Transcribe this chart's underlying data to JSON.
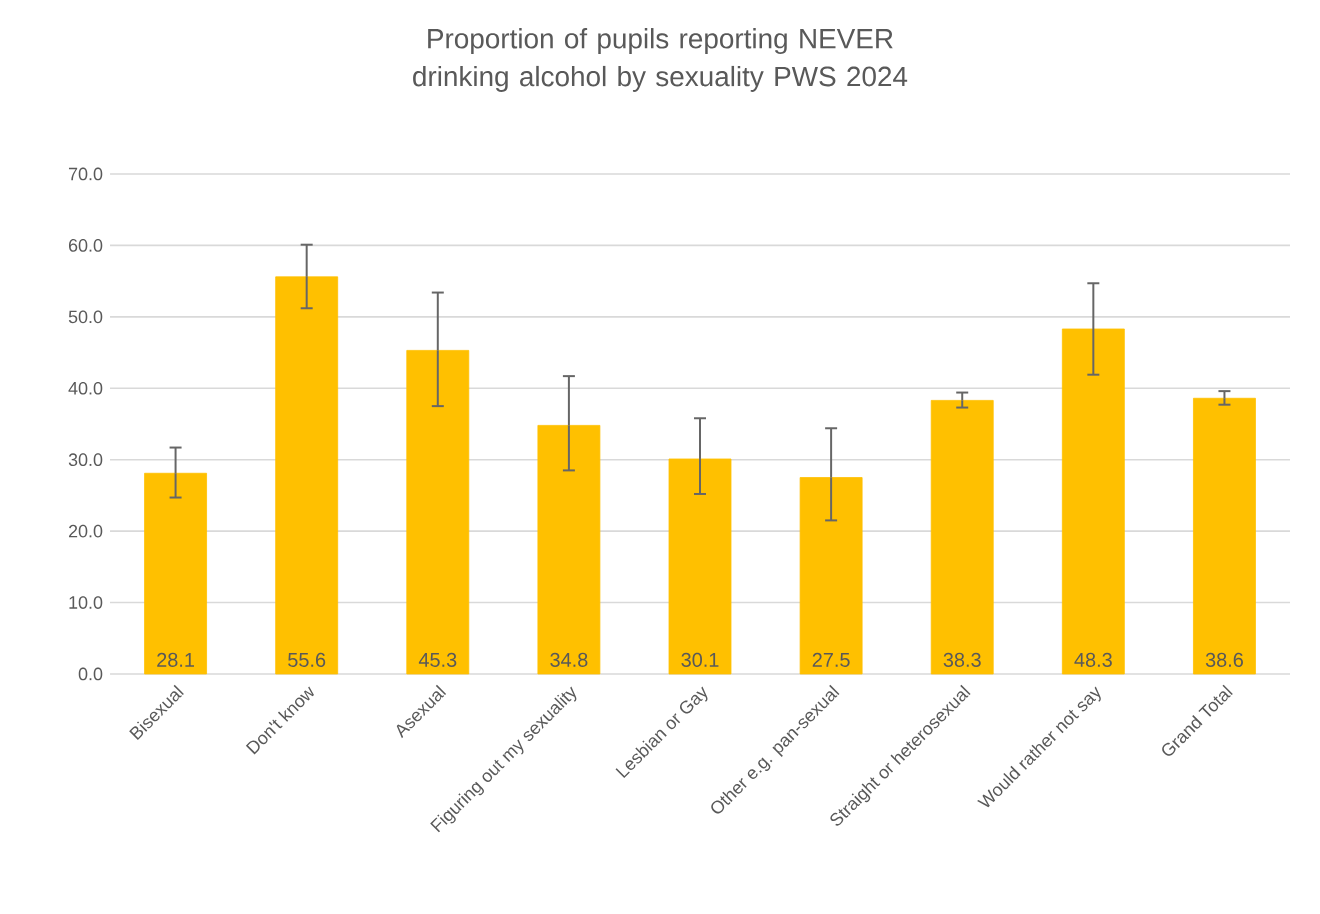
{
  "chart_data": {
    "type": "bar",
    "title": "Proportion of pupils reporting NEVER drinking alcohol by sexuality PWS 2024",
    "categories": [
      "Bisexual",
      "Don't know",
      "Asexual",
      "Figuring out my sexuality",
      "Lesbian or Gay",
      "Other e.g. pan-sexual",
      "Straight or heterosexual",
      "Would rather not say",
      "Grand Total"
    ],
    "values": [
      28.1,
      55.6,
      45.3,
      34.8,
      30.1,
      27.5,
      38.3,
      48.3,
      38.6
    ],
    "errors": [
      [
        24.7,
        31.7
      ],
      [
        51.2,
        60.1
      ],
      [
        37.5,
        53.4
      ],
      [
        28.5,
        41.7
      ],
      [
        25.2,
        35.8
      ],
      [
        21.5,
        34.4
      ],
      [
        37.3,
        39.4
      ],
      [
        41.9,
        54.7
      ],
      [
        37.7,
        39.6
      ]
    ],
    "color": "#ffc000",
    "ylim": [
      0,
      70
    ],
    "yticks": [
      {
        "value": 0,
        "label": "0.0"
      },
      {
        "value": 10,
        "label": "10.0"
      },
      {
        "value": 20,
        "label": "20.0"
      },
      {
        "value": 30,
        "label": "30.0"
      },
      {
        "value": 40,
        "label": "40.0"
      },
      {
        "value": 50,
        "label": "50.0"
      },
      {
        "value": 60,
        "label": "60.0"
      },
      {
        "value": 70,
        "label": "70.0"
      }
    ],
    "grid": "y",
    "data_labels": true
  }
}
